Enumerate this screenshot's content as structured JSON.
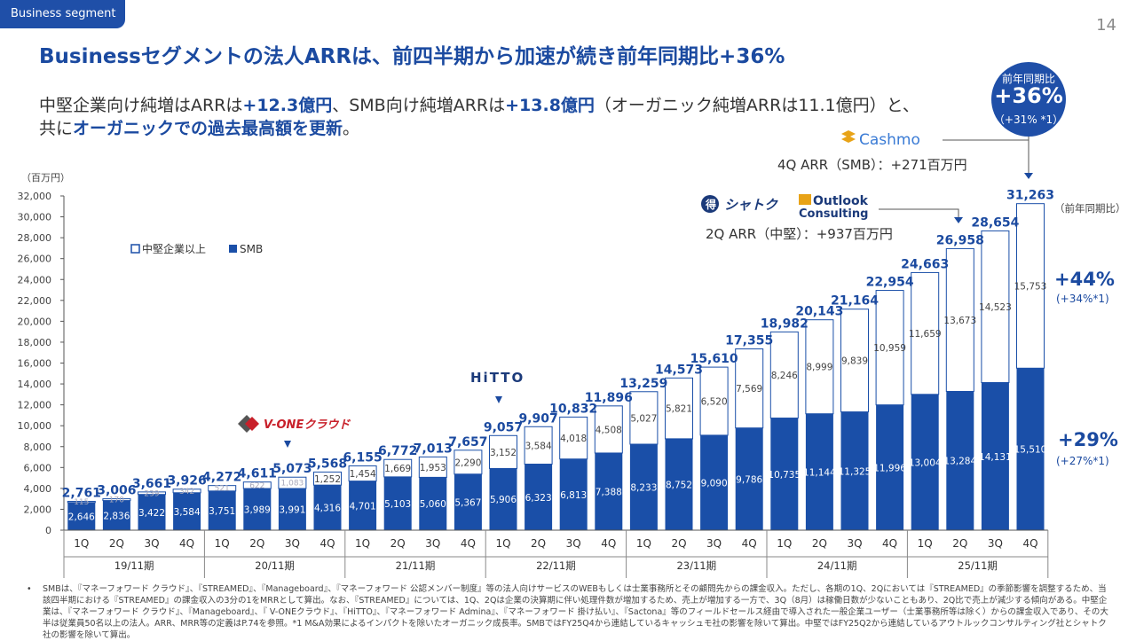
{
  "header": {
    "segment_tag": "Business segment",
    "page_number": "14",
    "headline": "Businessセグメントの法人ARRは、前四半期から加速が続き前年同期比+36%",
    "sub_line1": {
      "p1": "中堅企業向け純増はARRは",
      "b1": "+12.3億円",
      "p2": "、SMB向け純増ARRは",
      "b2": "+13.8億円",
      "p3": "（オーガニック純増ARRは11.1億円）と、"
    },
    "sub_line2": {
      "p1": "共に",
      "b1": "オーガニックでの過去最高額を更新",
      "p2": "。"
    }
  },
  "yoy_badge": {
    "label": "前年同期比",
    "value": "+36%",
    "organic": "（+31% *1）"
  },
  "annotations": {
    "cashmo_logo": "Cashmo",
    "cashmo_note": "4Q ARR（SMB）：+271百万円",
    "shatoku_logo": "シャトク",
    "outlook_logo_line1": "Outlook",
    "outlook_logo_line2": "Consulting",
    "outlook_note": "2Q ARR（中堅）：+937百万円",
    "vone_logo": "V-ONEクラウド",
    "hitto_logo": "HiTTO",
    "yoy_header": "（前年同期比）",
    "upper_yoy": "+44%",
    "upper_yoy_organic": "(+34%*1)",
    "lower_yoy": "+29%",
    "lower_yoy_organic": "(+27%*1)"
  },
  "chart_data": {
    "type": "bar",
    "stacked": true,
    "unit_label": "（百万円）",
    "ylim": [
      0,
      32000
    ],
    "yticks": [
      "0",
      "2,000",
      "4,000",
      "6,000",
      "8,000",
      "10,000",
      "12,000",
      "14,000",
      "16,000",
      "18,000",
      "20,000",
      "22,000",
      "24,000",
      "26,000",
      "28,000",
      "30,000",
      "32,000"
    ],
    "legend": {
      "placement": "top-left",
      "items": [
        "中堅企業以上",
        "SMB"
      ]
    },
    "colors": {
      "smb": "#1a4fa8",
      "mid": "#ffffff",
      "outline": "#1a4fa8",
      "total_label": "#1b4aa0"
    },
    "categories": [
      "1Q",
      "2Q",
      "3Q",
      "4Q",
      "1Q",
      "2Q",
      "3Q",
      "4Q",
      "1Q",
      "2Q",
      "3Q",
      "4Q",
      "1Q",
      "2Q",
      "3Q",
      "4Q",
      "1Q",
      "2Q",
      "3Q",
      "4Q",
      "1Q",
      "2Q",
      "3Q",
      "4Q",
      "1Q",
      "2Q",
      "3Q",
      "4Q"
    ],
    "periods": [
      "19/11期",
      "20/11期",
      "21/11期",
      "22/11期",
      "23/11期",
      "24/11期",
      "25/11期"
    ],
    "series": [
      {
        "name": "SMB",
        "values": [
          2646,
          2836,
          3422,
          3584,
          3751,
          3989,
          3991,
          4316,
          4701,
          5103,
          5060,
          5367,
          5906,
          6323,
          6813,
          7388,
          8233,
          8752,
          9090,
          9786,
          10735,
          11144,
          11325,
          11996,
          13004,
          13284,
          14131,
          15510
        ]
      },
      {
        "name": "中堅企業以上",
        "values": [
          115,
          170,
          239,
          342,
          521,
          622,
          1083,
          1252,
          1454,
          1669,
          1953,
          2290,
          3152,
          3584,
          4018,
          4508,
          5027,
          5821,
          6520,
          7569,
          8246,
          8999,
          9839,
          10959,
          11659,
          13673,
          14523,
          15753
        ]
      }
    ],
    "totals": [
      "2,761",
      "3,006",
      "3,661",
      "3,926",
      "4,272",
      "4,611",
      "5,073",
      "5,568",
      "6,155",
      "6,772",
      "7,013",
      "7,657",
      "9,057",
      "9,907",
      "10,832",
      "11,896",
      "13,259",
      "14,573",
      "15,610",
      "17,355",
      "18,982",
      "20,143",
      "21,164",
      "22,954",
      "24,663",
      "26,958",
      "28,654",
      "31,263"
    ],
    "smb_labels": [
      "2,646",
      "2,836",
      "3,422",
      "3,584",
      "3,751",
      "3,989",
      "3,991",
      "4,316",
      "4,701",
      "5,103",
      "5,060",
      "5,367",
      "5,906",
      "6,323",
      "6,813",
      "7,388",
      "8,233",
      "8,752",
      "9,090",
      "9,786",
      "10,735",
      "11,144",
      "11,325",
      "11,996",
      "13,004",
      "13,284",
      "14,131",
      "15,510"
    ],
    "mid_labels": [
      "115",
      "170",
      "239",
      "342",
      "521",
      "622",
      "1,083",
      "1,252",
      "1,454",
      "1,669",
      "1,953",
      "2,290",
      "3,152",
      "3,584",
      "4,018",
      "4,508",
      "5,027",
      "5,821",
      "6,520",
      "7,569",
      "8,246",
      "8,999",
      "9,839",
      "10,959",
      "11,659",
      "13,673",
      "14,523",
      "15,753"
    ]
  },
  "footnote": {
    "bullet": "•",
    "text": "SMBは、『マネーフォワード クラウド』、『STREAMED』、『Manageboard』、『マネーフォワード 公認メンバー制度』等の法人向けサービスのWEBもしくは士業事務所とその顧問先からの課金収入。ただし、各期の1Q、2Qにおいては『STREAMED』の季節影響を調整するため、当該四半期における『STREAMED』の課金収入の3分の1をMRRとして算出。なお、『STREAMED』については、1Q、2Qは企業の決算期に伴い処理件数が増加するため、売上が増加する一方で、3Q（8月）は稼働日数が少ないこともあり、2Q比で売上が減少する傾向がある。中堅企業は、『マネーフォワード クラウド』、『Manageboard』、『 V-ONEクラウド』、『HiTTO』、『マネーフォワード Admina』、『マネーフォワード 掛け払い』、『Sactona』等のフィールドセールス経由で導入された一般企業ユーザー（士業事務所等は除く）からの課金収入であり、その大半は従業員50名以上の法人。ARR、MRR等の定義はP.74を参照。*1 M&A効果によるインパクトを除いたオーガニック成長率。SMBではFY25Q4から連結しているキャッシュモ社の影響を除いて算出。中堅ではFY25Q2から連結しているアウトルックコンサルティング社とシャトク社の影響を除いて算出。"
  }
}
